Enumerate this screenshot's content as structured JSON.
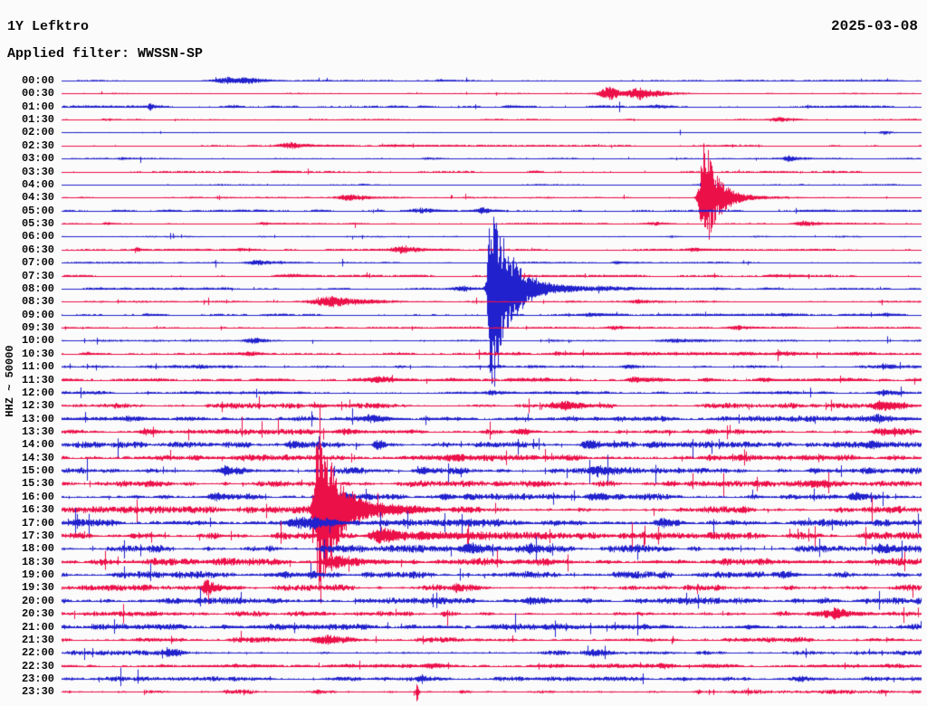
{
  "chart_data": {
    "type": "line",
    "variant": "helicorder-day-plot",
    "title": "1Y Lefktro",
    "date": "2025-03-08",
    "filter_label": "Applied filter: WWSSN-SP",
    "y_axis_label": "HHZ ~ 50000",
    "row_interval_minutes": 30,
    "x_range_minutes": [
      0,
      30
    ],
    "grid": false,
    "legend": "none",
    "trace_colors": {
      "blue": "#2121cd",
      "red": "#ec1049"
    },
    "text_color": "#0a0a0a",
    "background_color": "#fbfbfb",
    "events_format": "[position_fraction_of_row, peak_amplitude_px, rise_px, decay_px]",
    "rows": [
      {
        "time": "00:00",
        "color": "blue",
        "noise": 0.45,
        "events": [
          [
            0.193,
            3.5,
            10,
            14
          ],
          [
            0.218,
            3.2,
            8,
            20
          ],
          [
            0.44,
            1.6,
            3,
            6
          ]
        ]
      },
      {
        "time": "00:30",
        "color": "red",
        "noise": 0.4,
        "events": [
          [
            0.638,
            8,
            8,
            10
          ],
          [
            0.672,
            7,
            8,
            25
          ]
        ]
      },
      {
        "time": "01:00",
        "color": "blue",
        "noise": 0.65,
        "events": [
          [
            0.103,
            4.5,
            1.5,
            3
          ],
          [
            0.2,
            1.4,
            5,
            10
          ],
          [
            0.42,
            1.4,
            4,
            8
          ],
          [
            0.52,
            1.4,
            4,
            10
          ],
          [
            0.69,
            1.6,
            6,
            10
          ]
        ]
      },
      {
        "time": "01:30",
        "color": "red",
        "noise": 0.4,
        "events": [
          [
            0.05,
            1.4,
            3,
            8
          ],
          [
            0.834,
            3,
            7,
            13
          ]
        ]
      },
      {
        "time": "02:00",
        "color": "blue",
        "noise": 0.3,
        "events": [
          [
            0.958,
            2.5,
            5,
            9
          ]
        ]
      },
      {
        "time": "02:30",
        "color": "red",
        "noise": 0.45,
        "events": [
          [
            0.266,
            4,
            10,
            20
          ],
          [
            0.39,
            1.7,
            9,
            16
          ]
        ]
      },
      {
        "time": "03:00",
        "color": "blue",
        "noise": 0.45,
        "events": [
          [
            0.072,
            1.4,
            4,
            8
          ],
          [
            0.428,
            1.8,
            6,
            12
          ],
          [
            0.845,
            3.5,
            5,
            12
          ]
        ]
      },
      {
        "time": "03:30",
        "color": "red",
        "noise": 0.35,
        "events": [
          [
            0.25,
            1.1,
            4,
            10
          ],
          [
            0.55,
            1.1,
            4,
            8
          ]
        ]
      },
      {
        "time": "04:00",
        "color": "blue",
        "noise": 0.3,
        "events": [
          [
            0.35,
            1.1,
            3,
            6
          ]
        ]
      },
      {
        "time": "04:30",
        "color": "red",
        "noise": 0.45,
        "events": [
          [
            0.335,
            3.2,
            9,
            18
          ],
          [
            0.748,
            70,
            4,
            12
          ],
          [
            0.77,
            5,
            10,
            30
          ]
        ]
      },
      {
        "time": "05:00",
        "color": "blue",
        "noise": 0.55,
        "events": [
          [
            0.42,
            3.2,
            9,
            16
          ],
          [
            0.49,
            3.8,
            6,
            9
          ]
        ]
      },
      {
        "time": "05:30",
        "color": "red",
        "noise": 0.45,
        "events": [
          [
            0.053,
            1.7,
            4,
            8
          ],
          [
            0.235,
            2,
            5,
            10
          ],
          [
            0.69,
            2.4,
            7,
            14
          ],
          [
            0.865,
            2.8,
            7,
            14
          ]
        ]
      },
      {
        "time": "06:00",
        "color": "blue",
        "noise": 0.45,
        "events": [
          [
            0.71,
            1.3,
            4,
            8
          ]
        ]
      },
      {
        "time": "06:30",
        "color": "red",
        "noise": 0.45,
        "events": [
          [
            0.088,
            2.4,
            2,
            4
          ],
          [
            0.21,
            1.8,
            8,
            14
          ],
          [
            0.4,
            4.2,
            11,
            18
          ],
          [
            0.735,
            1.8,
            6,
            12
          ]
        ]
      },
      {
        "time": "07:00",
        "color": "blue",
        "noise": 0.5,
        "events": [
          [
            0.23,
            2.8,
            9,
            16
          ],
          [
            0.645,
            1.8,
            5,
            10
          ]
        ]
      },
      {
        "time": "07:30",
        "color": "red",
        "noise": 0.45,
        "events": [
          [
            0.27,
            2.2,
            14,
            24
          ],
          [
            0.83,
            1.9,
            5,
            10
          ]
        ]
      },
      {
        "time": "08:00",
        "color": "blue",
        "noise": 0.7,
        "events": [
          [
            0.468,
            3,
            12,
            8
          ],
          [
            0.5,
            130,
            3,
            16
          ],
          [
            0.53,
            9,
            10,
            55
          ],
          [
            0.82,
            1.2,
            5,
            10
          ]
        ]
      },
      {
        "time": "08:30",
        "color": "red",
        "noise": 0.55,
        "events": [
          [
            0.315,
            6,
            18,
            36
          ],
          [
            0.67,
            1.9,
            6,
            12
          ]
        ]
      },
      {
        "time": "09:00",
        "color": "blue",
        "noise": 0.55,
        "events": [
          [
            0.1,
            1.4,
            4,
            10
          ],
          [
            0.615,
            2,
            5,
            12
          ],
          [
            0.84,
            1.6,
            4,
            8
          ],
          [
            0.96,
            1.6,
            4,
            8
          ]
        ]
      },
      {
        "time": "09:30",
        "color": "red",
        "noise": 0.5,
        "events": [
          [
            0.645,
            2.1,
            6,
            12
          ],
          [
            0.785,
            2.6,
            6,
            12
          ]
        ]
      },
      {
        "time": "10:00",
        "color": "blue",
        "noise": 0.55,
        "events": [
          [
            0.225,
            2.8,
            8,
            16
          ],
          [
            0.72,
            1.8,
            18,
            26
          ]
        ]
      },
      {
        "time": "10:30",
        "color": "red",
        "noise": 0.95,
        "events": [
          [
            0.03,
            1.9,
            5,
            10
          ],
          [
            0.22,
            2.1,
            6,
            12
          ],
          [
            0.575,
            2.6,
            2,
            6
          ],
          [
            0.835,
            1.9,
            5,
            10
          ]
        ]
      },
      {
        "time": "11:00",
        "color": "blue",
        "noise": 0.8,
        "events": [
          [
            0.16,
            1.9,
            4,
            10
          ],
          [
            0.5,
            1.7,
            3,
            10
          ],
          [
            0.66,
            1.5,
            4,
            8
          ],
          [
            0.96,
            2,
            6,
            12
          ]
        ]
      },
      {
        "time": "11:30",
        "color": "red",
        "noise": 1.0,
        "events": [
          [
            0.37,
            2.8,
            7,
            13
          ],
          [
            0.665,
            2.8,
            6,
            13
          ],
          [
            0.75,
            2,
            5,
            10
          ],
          [
            0.82,
            1.9,
            5,
            10
          ]
        ]
      },
      {
        "time": "12:00",
        "color": "blue",
        "noise": 0.85,
        "events": [
          [
            0.5,
            1.9,
            3,
            14
          ],
          [
            0.955,
            4,
            4,
            10
          ]
        ]
      },
      {
        "time": "12:30",
        "color": "red",
        "noise": 1.4,
        "events": [
          [
            0.3,
            2.4,
            6,
            12
          ],
          [
            0.585,
            4.5,
            9,
            18
          ],
          [
            0.955,
            5,
            6,
            18
          ]
        ]
      },
      {
        "time": "13:00",
        "color": "blue",
        "noise": 1.5,
        "events": [
          [
            0.08,
            3.2,
            9,
            16
          ],
          [
            0.36,
            4.8,
            7,
            14
          ],
          [
            0.95,
            4.2,
            9,
            22
          ]
        ]
      },
      {
        "time": "13:30",
        "color": "red",
        "noise": 1.5,
        "events": [
          [
            0.1,
            2.4,
            6,
            12
          ],
          [
            0.33,
            3.2,
            7,
            14
          ],
          [
            0.53,
            2.4,
            6,
            12
          ],
          [
            0.955,
            3.2,
            7,
            16
          ]
        ]
      },
      {
        "time": "14:00",
        "color": "blue",
        "noise": 1.6,
        "events": [
          [
            0.265,
            3.2,
            4,
            8
          ],
          [
            0.367,
            5.2,
            3,
            7
          ],
          [
            0.61,
            4.2,
            4,
            9
          ],
          [
            0.685,
            3.2,
            4,
            8
          ],
          [
            0.945,
            3.2,
            5,
            11
          ]
        ]
      },
      {
        "time": "14:30",
        "color": "red",
        "noise": 1.7,
        "events": [
          [
            0.455,
            2.6,
            6,
            11
          ],
          [
            0.865,
            3.2,
            6,
            11
          ]
        ]
      },
      {
        "time": "15:00",
        "color": "blue",
        "noise": 1.7,
        "events": [
          [
            0.19,
            4.2,
            7,
            13
          ],
          [
            0.42,
            3.2,
            5,
            9
          ],
          [
            0.625,
            4.2,
            6,
            11
          ],
          [
            0.875,
            3.2,
            5,
            9
          ]
        ]
      },
      {
        "time": "15:30",
        "color": "red",
        "noise": 1.7,
        "events": [
          [
            0.105,
            2.6,
            5,
            9
          ],
          [
            0.705,
            2.6,
            5,
            9
          ],
          [
            0.875,
            3,
            6,
            11
          ]
        ]
      },
      {
        "time": "16:00",
        "color": "blue",
        "noise": 1.7,
        "events": [
          [
            0.18,
            4.2,
            6,
            11
          ],
          [
            0.33,
            3.2,
            5,
            9
          ],
          [
            0.445,
            3.2,
            5,
            9
          ],
          [
            0.62,
            4.2,
            6,
            11
          ],
          [
            0.925,
            2.8,
            5,
            9
          ]
        ]
      },
      {
        "time": "16:30",
        "color": "red",
        "noise": 1.8,
        "events": [
          [
            0.3,
            115,
            4,
            15
          ],
          [
            0.325,
            10,
            8,
            45
          ]
        ]
      },
      {
        "time": "17:00",
        "color": "blue",
        "noise": 1.9,
        "events": [
          [
            0.29,
            4.5,
            18,
            28
          ],
          [
            0.475,
            2.8,
            6,
            11
          ],
          [
            0.7,
            2.8,
            6,
            11
          ]
        ]
      },
      {
        "time": "17:30",
        "color": "red",
        "noise": 1.9,
        "events": [
          [
            0.085,
            2.6,
            5,
            9
          ],
          [
            0.375,
            7.5,
            12,
            24
          ],
          [
            0.45,
            3.5,
            8,
            26
          ]
        ]
      },
      {
        "time": "18:00",
        "color": "blue",
        "noise": 1.9,
        "events": [
          [
            0.475,
            3.8,
            6,
            11
          ],
          [
            0.545,
            2.8,
            5,
            9
          ],
          [
            0.955,
            2.8,
            6,
            11
          ]
        ]
      },
      {
        "time": "18:30",
        "color": "red",
        "noise": 1.9,
        "events": [
          [
            0.32,
            4.5,
            12,
            30
          ],
          [
            0.53,
            2.8,
            6,
            11
          ]
        ]
      },
      {
        "time": "19:00",
        "color": "blue",
        "noise": 1.9,
        "events": [
          [
            0.26,
            3.5,
            11,
            22
          ],
          [
            0.84,
            3.8,
            7,
            14
          ]
        ]
      },
      {
        "time": "19:30",
        "color": "red",
        "noise": 1.7,
        "events": [
          [
            0.168,
            8,
            3,
            16
          ],
          [
            0.46,
            2.4,
            5,
            9
          ]
        ]
      },
      {
        "time": "20:00",
        "color": "blue",
        "noise": 1.7,
        "events": [
          [
            0.545,
            2.8,
            5,
            9
          ],
          [
            0.855,
            2.8,
            5,
            9
          ]
        ]
      },
      {
        "time": "20:30",
        "color": "red",
        "noise": 1.4,
        "events": [
          [
            0.9,
            6,
            13,
            22
          ]
        ]
      },
      {
        "time": "21:00",
        "color": "blue",
        "noise": 1.6,
        "events": [
          [
            0.19,
            2.6,
            5,
            9
          ],
          [
            0.8,
            2.6,
            5,
            9
          ]
        ]
      },
      {
        "time": "21:30",
        "color": "red",
        "noise": 1.4,
        "events": [
          [
            0.31,
            4.2,
            9,
            16
          ]
        ]
      },
      {
        "time": "22:00",
        "color": "blue",
        "noise": 1.3,
        "events": [
          [
            0.125,
            3.2,
            7,
            14
          ],
          [
            0.62,
            2.1,
            5,
            9
          ]
        ]
      },
      {
        "time": "22:30",
        "color": "red",
        "noise": 1.1,
        "events": [
          [
            0.43,
            2.1,
            5,
            11
          ],
          [
            0.7,
            1.7,
            4,
            8
          ]
        ]
      },
      {
        "time": "23:00",
        "color": "blue",
        "noise": 1.2,
        "events": [
          [
            0.42,
            1.9,
            5,
            9
          ],
          [
            0.86,
            1.5,
            4,
            8
          ]
        ]
      },
      {
        "time": "23:30",
        "color": "red",
        "noise": 1.1,
        "events": [
          [
            0.3,
            2.4,
            5,
            9
          ],
          [
            0.413,
            13,
            1,
            1.5
          ],
          [
            0.74,
            1.9,
            4,
            8
          ]
        ]
      }
    ]
  }
}
